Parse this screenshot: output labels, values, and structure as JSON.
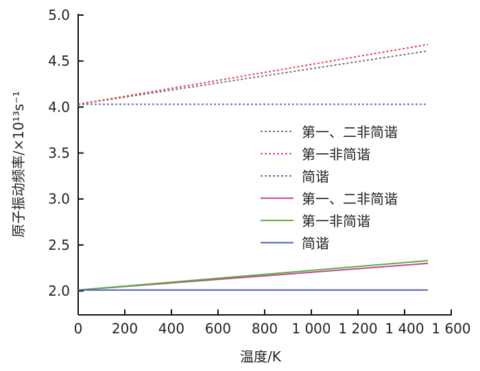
{
  "chart_data": {
    "type": "line",
    "title": "",
    "xlabel": "温度/K",
    "ylabel": "原子振动频率/×10¹³s⁻¹",
    "xlim": [
      0,
      1600
    ],
    "ylim": [
      1.74,
      5.0
    ],
    "xticks": [
      0,
      200,
      400,
      600,
      800,
      1000,
      1200,
      1400,
      1600
    ],
    "xtick_labels": [
      "0",
      "200",
      "400",
      "600",
      "800",
      "1 000",
      "1 200",
      "1 400",
      "1 600"
    ],
    "yticks": [
      2.0,
      2.5,
      3.0,
      3.5,
      4.0,
      4.5,
      5.0
    ],
    "ytick_labels": [
      "2.0",
      "2.5",
      "3.0",
      "3.5",
      "4.0",
      "4.5",
      "5.0"
    ],
    "grid": false,
    "legend_position": "center-right",
    "series": [
      {
        "name": "第一、二非简谐",
        "style": "dotted",
        "color": "#707070",
        "x": [
          0,
          1500
        ],
        "y": [
          4.03,
          4.61
        ]
      },
      {
        "name": "第一非简谐",
        "style": "dotted",
        "color": "#e8404a",
        "x": [
          0,
          1500
        ],
        "y": [
          4.03,
          4.68
        ]
      },
      {
        "name": "简谐",
        "style": "dotted",
        "color": "#5a6ab8",
        "x": [
          0,
          1500
        ],
        "y": [
          4.03,
          4.03
        ]
      },
      {
        "name": "第一、二非简谐",
        "style": "solid",
        "color": "#c0449a",
        "x": [
          0,
          1500
        ],
        "y": [
          2.01,
          2.3
        ]
      },
      {
        "name": "第一非简谐",
        "style": "solid",
        "color": "#5aae3c",
        "x": [
          0,
          1500
        ],
        "y": [
          2.01,
          2.33
        ]
      },
      {
        "name": "简谐",
        "style": "solid",
        "color": "#5560b0",
        "x": [
          0,
          1500
        ],
        "y": [
          2.01,
          2.01
        ]
      }
    ]
  }
}
